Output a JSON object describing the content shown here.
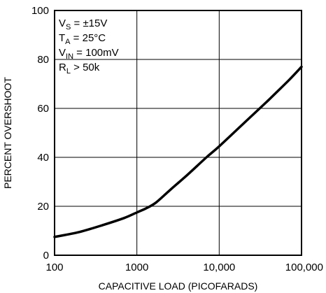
{
  "chart_data": {
    "type": "line",
    "title": "",
    "xlabel": "CAPACITIVE LOAD (PICOFARADS)",
    "ylabel": "PERCENT OVERSHOOT",
    "x_scale": "log",
    "xlim": [
      100,
      100000
    ],
    "ylim": [
      0,
      100
    ],
    "x_ticks": [
      {
        "value": 100,
        "label": "100"
      },
      {
        "value": 1000,
        "label": "1000"
      },
      {
        "value": 10000,
        "label": "10,000"
      },
      {
        "value": 100000,
        "label": "100,000"
      }
    ],
    "y_ticks": [
      {
        "value": 0,
        "label": "0"
      },
      {
        "value": 20,
        "label": "20"
      },
      {
        "value": 40,
        "label": "40"
      },
      {
        "value": 60,
        "label": "60"
      },
      {
        "value": 80,
        "label": "80"
      },
      {
        "value": 100,
        "label": "100"
      }
    ],
    "grid": true,
    "series": [
      {
        "points": [
          {
            "x": 100,
            "y": 7.5
          },
          {
            "x": 200,
            "y": 9.5
          },
          {
            "x": 400,
            "y": 12.5
          },
          {
            "x": 700,
            "y": 15.2
          },
          {
            "x": 1000,
            "y": 17.5
          },
          {
            "x": 1300,
            "y": 19.2
          },
          {
            "x": 1700,
            "y": 21.5
          },
          {
            "x": 2500,
            "y": 26.5
          },
          {
            "x": 4000,
            "y": 32.5
          },
          {
            "x": 7000,
            "y": 40
          },
          {
            "x": 10000,
            "y": 44.5
          },
          {
            "x": 20000,
            "y": 54
          },
          {
            "x": 40000,
            "y": 63.5
          },
          {
            "x": 70000,
            "y": 71.5
          },
          {
            "x": 100000,
            "y": 77
          }
        ]
      }
    ],
    "annotations": [
      {
        "main": "V",
        "sub": "S",
        "rest": " = ±15V"
      },
      {
        "main": "T",
        "sub": "A",
        "rest": " = 25°C"
      },
      {
        "main": "V",
        "sub": "IN",
        "rest": " = 100mV"
      },
      {
        "main": "R",
        "sub": "L",
        "rest": " > 50k"
      }
    ]
  }
}
